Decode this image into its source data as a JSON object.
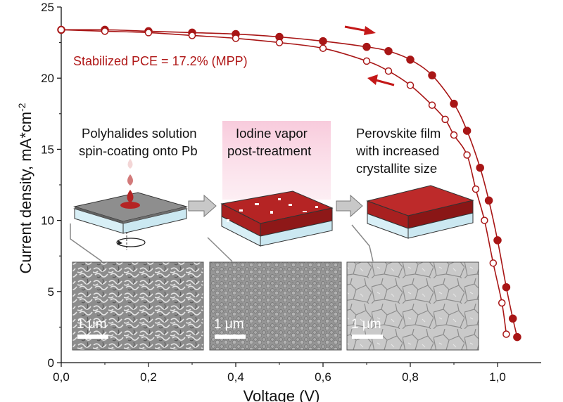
{
  "chart_data": {
    "type": "scatter",
    "xlabel": "Voltage (V)",
    "ylabel": "Current density, mA*cm",
    "ylabel_superscript": "-2",
    "xlim": [
      0.0,
      1.1
    ],
    "ylim": [
      0,
      25
    ],
    "x_ticks": [
      0.0,
      0.2,
      0.4,
      0.6,
      0.8,
      1.0
    ],
    "x_tick_labels": [
      "0,0",
      "0,2",
      "0,4",
      "0,6",
      "0,8",
      "1,0"
    ],
    "y_ticks": [
      0,
      5,
      10,
      15,
      20,
      25
    ],
    "y_tick_labels": [
      "0",
      "5",
      "10",
      "15",
      "20",
      "25"
    ],
    "colors": {
      "series": "#a81616",
      "axis": "#111111"
    },
    "series": [
      {
        "marker": "filled",
        "direction": "forward",
        "x": [
          0.0,
          0.1,
          0.2,
          0.3,
          0.4,
          0.5,
          0.6,
          0.7,
          0.75,
          0.8,
          0.85,
          0.9,
          0.93,
          0.96,
          0.98,
          1.0,
          1.02,
          1.035,
          1.045
        ],
        "y": [
          23.4,
          23.4,
          23.3,
          23.2,
          23.1,
          22.9,
          22.6,
          22.2,
          21.9,
          21.3,
          20.2,
          18.2,
          16.3,
          13.7,
          11.4,
          8.6,
          5.3,
          3.1,
          1.8
        ]
      },
      {
        "marker": "open",
        "direction": "reverse",
        "x": [
          0.0,
          0.1,
          0.2,
          0.3,
          0.4,
          0.5,
          0.6,
          0.7,
          0.75,
          0.8,
          0.85,
          0.88,
          0.9,
          0.93,
          0.95,
          0.97,
          0.99,
          1.01,
          1.02
        ],
        "y": [
          23.4,
          23.3,
          23.2,
          23.0,
          22.8,
          22.5,
          22.1,
          21.2,
          20.5,
          19.5,
          18.1,
          17.1,
          16.0,
          14.6,
          12.2,
          10.0,
          7.0,
          4.2,
          2.0
        ]
      }
    ],
    "annotation": "Stabilized PCE = 17.2% (MPP)"
  },
  "inset": {
    "steps": [
      {
        "lines": [
          "Polyhalides solution",
          "spin-coating onto Pb"
        ]
      },
      {
        "lines": [
          "Iodine vapor",
          "post-treatment"
        ]
      },
      {
        "lines": [
          "Perovskite film",
          "with increased",
          "crystallite size"
        ]
      }
    ],
    "scale_bar_label": "1 μm"
  }
}
